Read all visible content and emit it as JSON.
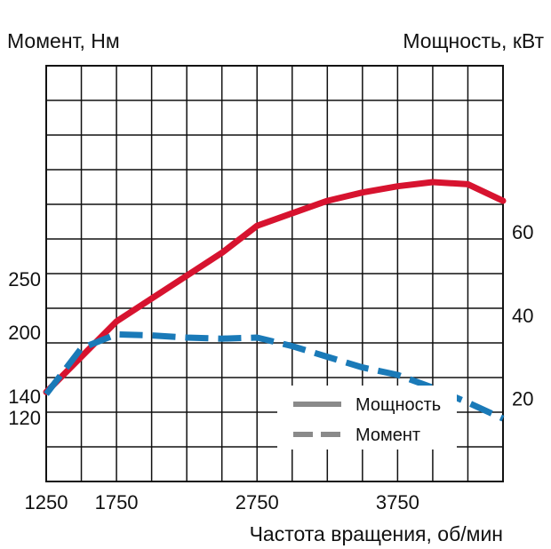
{
  "chart_data": {
    "type": "line",
    "y_left_label": "Момент, Нм",
    "y_right_label": "Мощность, кВт",
    "xlabel": "Частота вращения, об/мин",
    "x_ticks": [
      "1250",
      "1750",
      "2750",
      "3750"
    ],
    "y_left_ticks": [
      "120",
      "140",
      "200",
      "250"
    ],
    "y_right_ticks": [
      "20",
      "40",
      "60"
    ],
    "xlim": [
      1250,
      4500
    ],
    "y_left_lim": [
      60,
      450
    ],
    "y_right_lim": [
      0,
      100
    ],
    "grid": true,
    "legend_position": "bottom-right",
    "series": [
      {
        "name": "Мощность",
        "axis": "right",
        "style": "solid",
        "color": "#d7132f",
        "x": [
          1250,
          1500,
          1750,
          2000,
          2250,
          2500,
          2750,
          3000,
          3250,
          3500,
          3750,
          4000,
          4250,
          4500
        ],
        "y": [
          21.5,
          30,
          38.5,
          44,
          49.5,
          55,
          61.5,
          64.5,
          67.5,
          69.5,
          71,
          72,
          71.5,
          67.5
        ]
      },
      {
        "name": "Момент",
        "axis": "left",
        "style": "dashed",
        "color": "#1a7ab8",
        "x": [
          1250,
          1500,
          1750,
          2000,
          2250,
          2500,
          2750,
          3000,
          3250,
          3500,
          3750,
          4000,
          4250,
          4500
        ],
        "y": [
          142,
          185,
          198,
          197,
          195,
          194,
          195,
          187,
          177,
          167,
          160,
          148,
          134,
          119
        ]
      }
    ]
  }
}
